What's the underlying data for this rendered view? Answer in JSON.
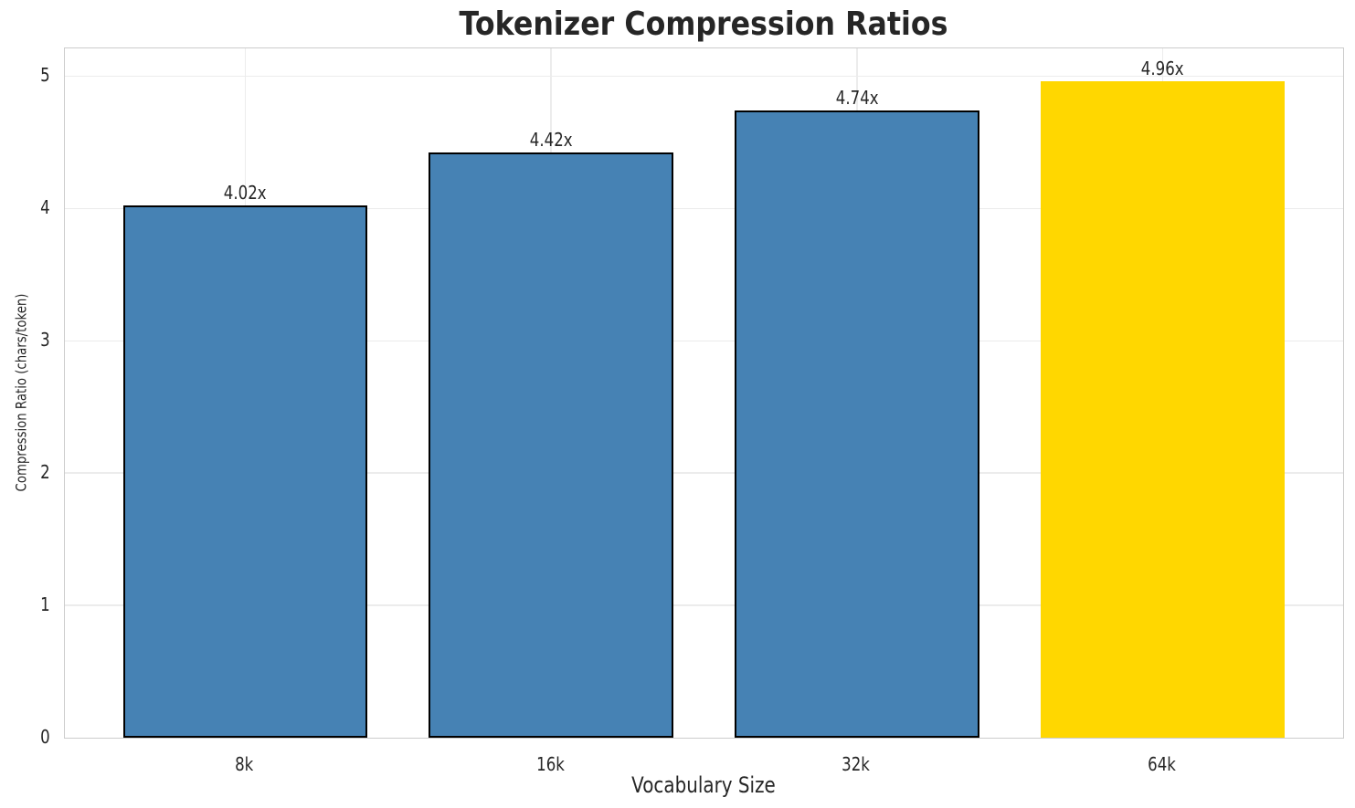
{
  "chart_data": {
    "type": "bar",
    "title": "Tokenizer Compression Ratios",
    "xlabel": "Vocabulary Size",
    "ylabel": "Compression Ratio (chars/token)",
    "categories": [
      "8k",
      "16k",
      "32k",
      "64k"
    ],
    "values": [
      4.02,
      4.42,
      4.74,
      4.96
    ],
    "bar_labels": [
      "4.02x",
      "4.42x",
      "4.74x",
      "4.96x"
    ],
    "yticks": [
      0,
      1,
      2,
      3,
      4,
      5
    ],
    "ylim": [
      0,
      5.21
    ],
    "grid": true,
    "legend_position": "none",
    "highlight_index": 3,
    "colors": {
      "bar": "#4682b4",
      "highlight_bar": "#ffd700",
      "bar_edge": "#000000",
      "grid": "#ececec",
      "spine": "#cccccc",
      "text": "#262626",
      "background": "#ffffff"
    }
  }
}
